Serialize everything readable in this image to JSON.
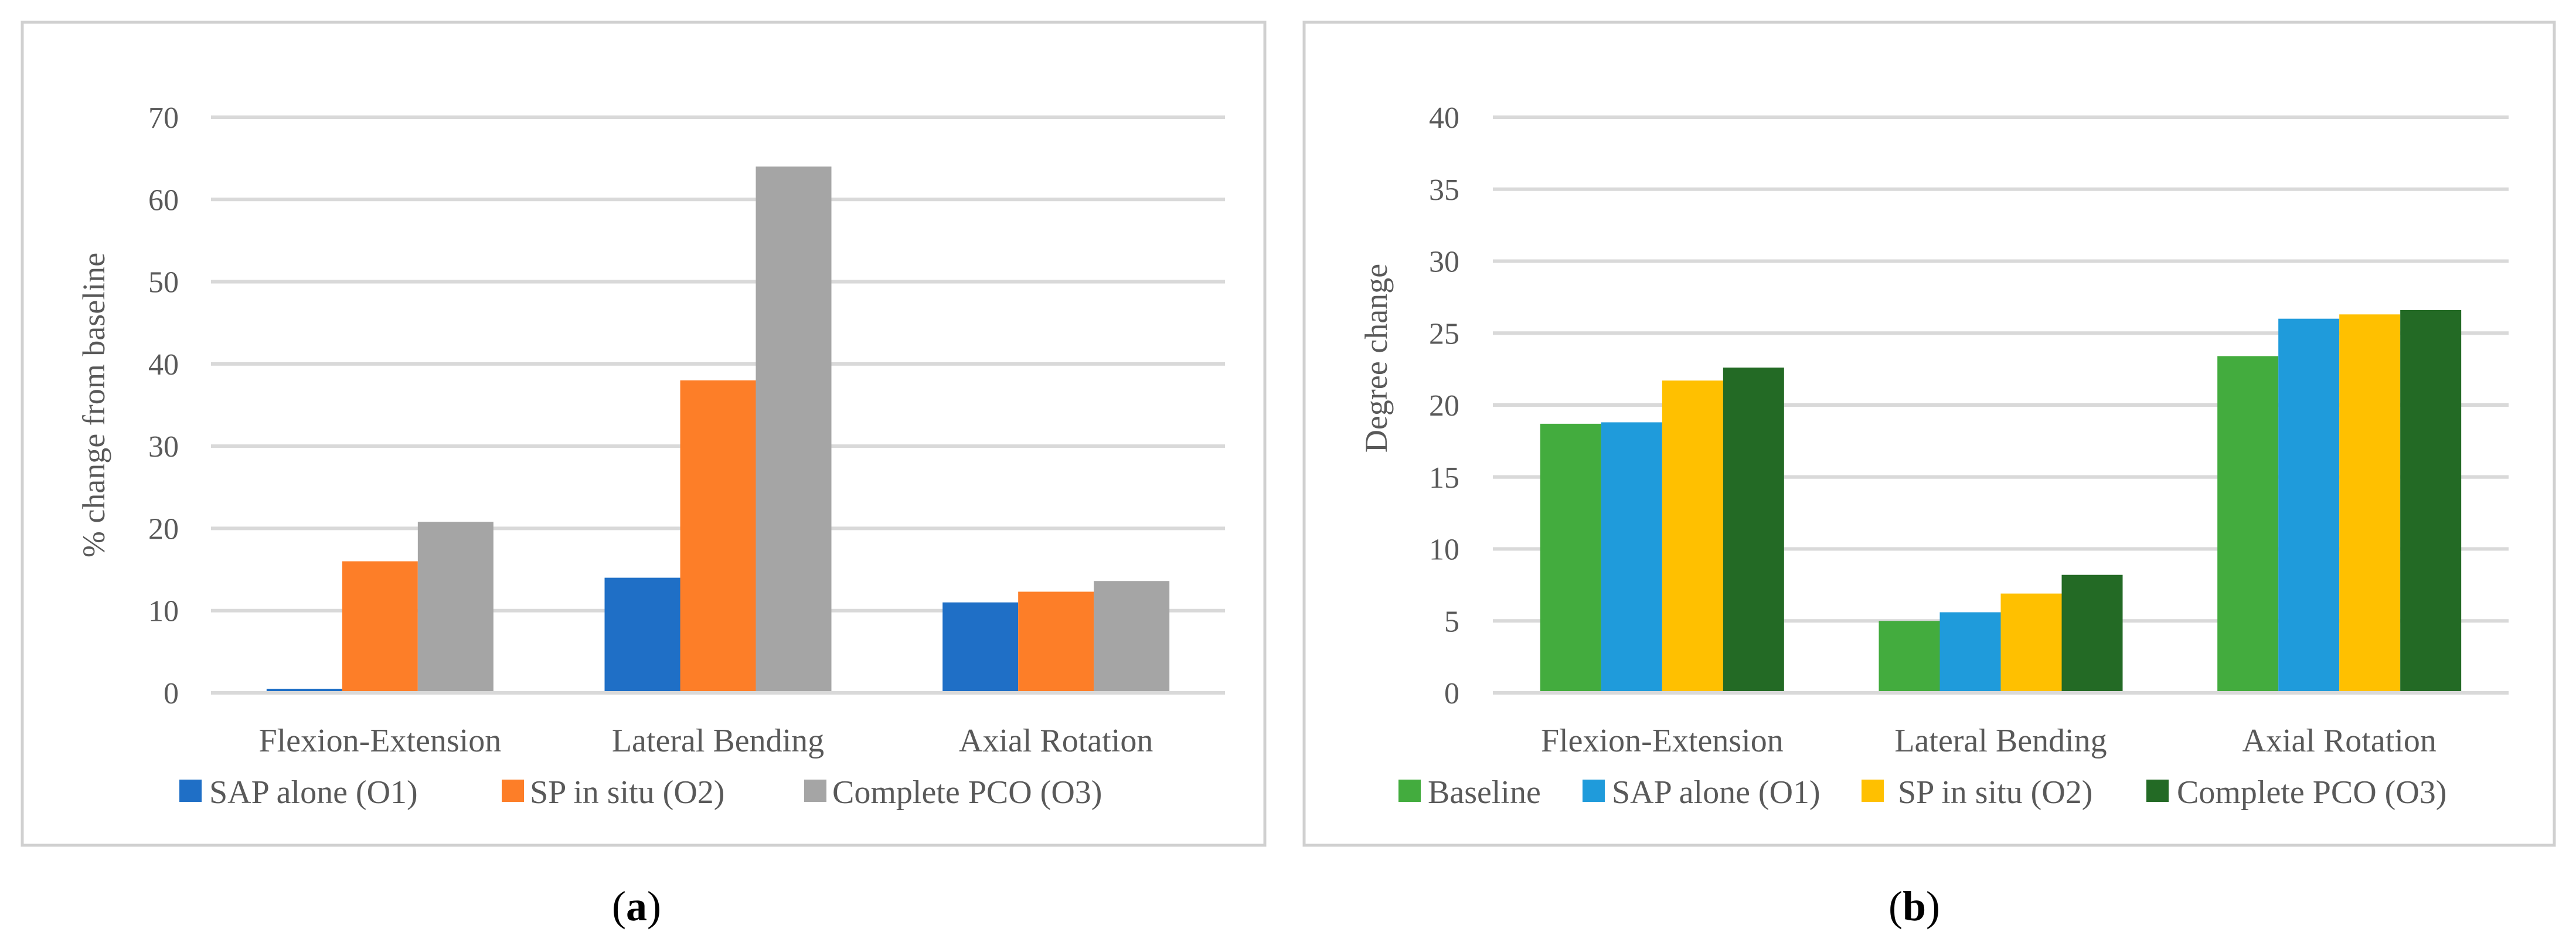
{
  "chart_data": [
    {
      "panel": "a",
      "type": "bar",
      "title": "",
      "xlabel": "",
      "ylabel": "% change from baseline",
      "ylim": [
        0,
        70
      ],
      "yticks": [
        0,
        10,
        20,
        30,
        40,
        50,
        60,
        70
      ],
      "grid": true,
      "legend_position": "bottom",
      "categories": [
        "Flexion-Extension",
        "Lateral Bending",
        "Axial Rotation"
      ],
      "series": [
        {
          "name": "SAP alone (O1)",
          "color": "#1f6fc6",
          "values": [
            0.5,
            14,
            11
          ]
        },
        {
          "name": "SP in situ (O2)",
          "color": "#fd7e28",
          "values": [
            16,
            38,
            12.3
          ]
        },
        {
          "name": "Complete PCO (O3)",
          "color": "#a5a5a5",
          "values": [
            20.8,
            64,
            13.6
          ]
        }
      ],
      "caption": {
        "open": "(",
        "letter": "a",
        "close": ")"
      }
    },
    {
      "panel": "b",
      "type": "bar",
      "title": "",
      "xlabel": "",
      "ylabel": "Degree change",
      "ylim": [
        0,
        40
      ],
      "yticks": [
        0,
        5,
        10,
        15,
        20,
        25,
        30,
        35,
        40
      ],
      "grid": true,
      "legend_position": "bottom",
      "categories": [
        "Flexion-Extension",
        "Lateral Bending",
        "Axial Rotation"
      ],
      "series": [
        {
          "name": "Baseline",
          "color": "#43ac3e",
          "values": [
            18.7,
            5.0,
            23.4
          ]
        },
        {
          "name": "SAP alone (O1)",
          "color": "#1f9bdb",
          "values": [
            18.8,
            5.6,
            26.0
          ]
        },
        {
          "name": "SP in situ (O2)",
          "color": "#ffc000",
          "values": [
            21.7,
            6.9,
            26.3
          ]
        },
        {
          "name": "Complete PCO (O3)",
          "color": "#236a25",
          "values": [
            22.6,
            8.2,
            26.6
          ]
        }
      ],
      "caption": {
        "open": "(",
        "letter": "b",
        "close": ")"
      }
    }
  ]
}
